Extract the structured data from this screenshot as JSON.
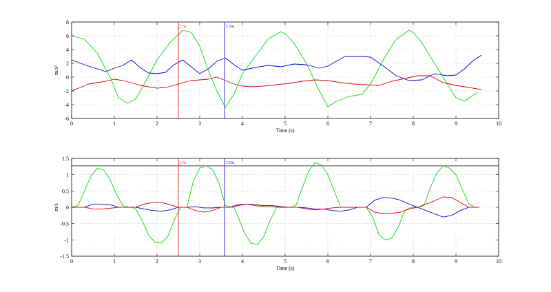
{
  "chart_data": [
    {
      "type": "line",
      "ylabel": "m/s²",
      "xlabel": "Time (s)",
      "xlim": [
        0,
        10
      ],
      "ylim": [
        -6,
        8
      ],
      "xticks": [
        0,
        1,
        2,
        3,
        4,
        5,
        6,
        7,
        8,
        9,
        10
      ],
      "yticks": [
        -6,
        -4,
        -2,
        0,
        2,
        4,
        6,
        8
      ],
      "grid": true,
      "colors": {
        "green": "#00dd00",
        "blue": "#0000dd",
        "red": "#dd0000",
        "marker_red": "#ee3333",
        "marker_blue": "#3333ee"
      },
      "markers": [
        {
          "x": 2.5,
          "label": "2.5s",
          "color": "red"
        },
        {
          "x": 3.58,
          "label": "3.58s",
          "color": "blue"
        }
      ],
      "series": [
        {
          "color": "green",
          "x": [
            0,
            0.3,
            0.6,
            0.9,
            1.1,
            1.3,
            1.5,
            1.7,
            2.0,
            2.3,
            2.6,
            2.8,
            3.0,
            3.2,
            3.4,
            3.6,
            3.8,
            4.0,
            4.3,
            4.6,
            4.9,
            5.0,
            5.2,
            5.5,
            5.8,
            6.0,
            6.2,
            6.5,
            6.8,
            7.0,
            7.3,
            7.6,
            7.9,
            8.0,
            8.2,
            8.5,
            8.8,
            9.0,
            9.2,
            9.5
          ],
          "y": [
            6,
            5.5,
            3.5,
            0,
            -3,
            -3.8,
            -3.2,
            -1,
            2.5,
            5,
            6.8,
            6.5,
            4.5,
            1,
            -2,
            -4.4,
            -2.5,
            0.5,
            3,
            5.5,
            6.6,
            6.3,
            5,
            2,
            -2,
            -4.3,
            -3.5,
            -2.8,
            -2.5,
            -1,
            2.5,
            5.5,
            6.8,
            6.5,
            5,
            2,
            -1,
            -3,
            -3.5,
            -2.2
          ]
        },
        {
          "color": "blue",
          "x": [
            0,
            0.3,
            0.6,
            0.8,
            1.0,
            1.2,
            1.4,
            1.6,
            1.8,
            2.0,
            2.2,
            2.4,
            2.6,
            2.8,
            3.0,
            3.2,
            3.4,
            3.6,
            3.8,
            4.0,
            4.3,
            4.6,
            4.9,
            5.2,
            5.5,
            5.8,
            6.0,
            6.2,
            6.4,
            6.6,
            6.8,
            7.0,
            7.3,
            7.6,
            7.9,
            8.2,
            8.5,
            8.8,
            9.0,
            9.2,
            9.4,
            9.6
          ],
          "y": [
            2.5,
            1.8,
            1.2,
            0.8,
            1.3,
            1.7,
            2.5,
            1.4,
            0.6,
            0.5,
            0.7,
            1.8,
            2.5,
            1.5,
            0.5,
            1.2,
            2.3,
            2.8,
            1.8,
            1.0,
            1.4,
            1.7,
            1.5,
            1.9,
            1.8,
            1.3,
            1.6,
            2.3,
            3.0,
            3.0,
            3.0,
            2.9,
            1.6,
            0.2,
            -0.5,
            -0.4,
            0.5,
            0.2,
            0.3,
            1.2,
            2.4,
            3.2
          ]
        },
        {
          "color": "red",
          "x": [
            0,
            0.2,
            0.4,
            0.6,
            0.8,
            1.0,
            1.2,
            1.4,
            1.6,
            1.8,
            2.0,
            2.2,
            2.4,
            2.6,
            2.8,
            3.0,
            3.2,
            3.4,
            3.6,
            3.8,
            4.0,
            4.2,
            4.5,
            4.8,
            5.1,
            5.4,
            5.7,
            6.0,
            6.3,
            6.6,
            6.9,
            7.2,
            7.5,
            7.8,
            8.1,
            8.4,
            8.7,
            9.0,
            9.3,
            9.6
          ],
          "y": [
            -2.0,
            -1.5,
            -1.0,
            -0.8,
            -0.6,
            -0.3,
            -0.5,
            -0.8,
            -1.2,
            -1.4,
            -1.6,
            -1.5,
            -1.2,
            -0.8,
            -0.5,
            -0.4,
            -0.3,
            0,
            -0.5,
            -1.0,
            -1.3,
            -1.4,
            -1.3,
            -1.1,
            -0.9,
            -0.6,
            -0.4,
            -0.5,
            -0.8,
            -1.0,
            -1.1,
            -1.2,
            -0.6,
            -0.2,
            0.2,
            0.2,
            -0.8,
            -1.2,
            -1.5,
            -1.8
          ]
        }
      ]
    },
    {
      "type": "line",
      "ylabel": "m/s",
      "xlabel": "Time (s)",
      "xlim": [
        0,
        10
      ],
      "ylim": [
        -1.5,
        1.5
      ],
      "xticks": [
        0,
        1,
        2,
        3,
        4,
        5,
        6,
        7,
        8,
        9,
        10
      ],
      "yticks": [
        -1.5,
        -1,
        -0.5,
        0,
        0.5,
        1,
        1.5
      ],
      "grid": true,
      "reference_line": 1.27,
      "markers": [
        {
          "x": 2.5,
          "label": "2.5s",
          "color": "red"
        },
        {
          "x": 3.58,
          "label": "3.58s",
          "color": "blue"
        }
      ],
      "series": [
        {
          "color": "green",
          "x": [
            0,
            0.15,
            0.3,
            0.45,
            0.6,
            0.75,
            0.9,
            1.05,
            1.2,
            1.35,
            1.4,
            1.5,
            1.65,
            1.8,
            1.95,
            2.1,
            2.25,
            2.4,
            2.55,
            2.7,
            2.85,
            3.0,
            3.15,
            3.3,
            3.45,
            3.6,
            3.75,
            3.8,
            3.9,
            4.05,
            4.2,
            4.35,
            4.5,
            4.65,
            4.8,
            4.95,
            5.1,
            5.25,
            5.4,
            5.55,
            5.7,
            5.85,
            6.0,
            6.15,
            6.3,
            6.45,
            6.6,
            6.75,
            6.9,
            7.05,
            7.2,
            7.35,
            7.5,
            7.65,
            7.8,
            7.95,
            8.1,
            8.25,
            8.4,
            8.55,
            8.7,
            8.85,
            9.0,
            9.15,
            9.3,
            9.45,
            9.55
          ],
          "y": [
            0,
            0.05,
            0.5,
            0.95,
            1.2,
            1.15,
            0.85,
            0.4,
            0.05,
            0,
            0,
            -0.05,
            -0.4,
            -0.85,
            -1.07,
            -1.1,
            -0.9,
            -0.4,
            0,
            0,
            0.8,
            1.2,
            1.28,
            1.15,
            0.75,
            0.05,
            0,
            0,
            -0.3,
            -0.8,
            -1.1,
            -1.15,
            -0.9,
            -0.4,
            0,
            0,
            0,
            0.05,
            0.6,
            1.1,
            1.37,
            1.3,
            1.0,
            0.5,
            0,
            0,
            0,
            0,
            0,
            -0.3,
            -0.85,
            -1.0,
            -0.95,
            -0.6,
            -0.1,
            0,
            0,
            0.05,
            0.6,
            1.05,
            1.27,
            1.2,
            1.0,
            0.55,
            0.1,
            0,
            0
          ]
        },
        {
          "color": "blue",
          "x": [
            0,
            0.3,
            0.5,
            0.7,
            0.9,
            1.1,
            1.3,
            1.5,
            1.7,
            1.9,
            2.1,
            2.3,
            2.5,
            2.7,
            2.9,
            3.1,
            3.3,
            3.5,
            3.7,
            3.9,
            4.1,
            4.3,
            4.5,
            4.7,
            4.9,
            5.1,
            5.3,
            5.5,
            5.7,
            5.9,
            6.1,
            6.3,
            6.5,
            6.7,
            6.9,
            7.1,
            7.3,
            7.5,
            7.7,
            7.9,
            8.1,
            8.3,
            8.5,
            8.7,
            8.9,
            9.1,
            9.3,
            9.55
          ],
          "y": [
            0,
            0,
            0.1,
            0.1,
            0.08,
            0,
            0,
            0,
            -0.05,
            -0.1,
            -0.12,
            -0.08,
            0,
            0,
            0.02,
            -0.02,
            -0.02,
            0,
            0,
            0.05,
            0.1,
            0.08,
            0.05,
            0.05,
            0.02,
            0,
            0,
            -0.02,
            -0.05,
            -0.05,
            -0.1,
            -0.12,
            -0.08,
            0,
            0,
            0.22,
            0.3,
            0.28,
            0.22,
            0.1,
            0,
            -0.1,
            -0.2,
            -0.3,
            -0.25,
            -0.1,
            0,
            0
          ]
        },
        {
          "color": "red",
          "x": [
            0,
            0.3,
            0.5,
            0.7,
            0.9,
            1.1,
            1.3,
            1.5,
            1.7,
            1.9,
            2.1,
            2.3,
            2.5,
            2.7,
            2.9,
            3.1,
            3.3,
            3.5,
            3.7,
            3.9,
            4.1,
            4.3,
            4.5,
            4.7,
            4.9,
            5.1,
            5.3,
            5.5,
            5.7,
            5.9,
            6.1,
            6.3,
            6.5,
            6.7,
            6.9,
            7.1,
            7.3,
            7.5,
            7.7,
            7.9,
            8.1,
            8.3,
            8.5,
            8.7,
            8.9,
            9.1,
            9.3,
            9.55
          ],
          "y": [
            0,
            0,
            -0.05,
            -0.05,
            -0.03,
            0,
            0,
            0,
            0.1,
            0.15,
            0.15,
            0.08,
            0,
            0,
            -0.1,
            -0.15,
            -0.1,
            0,
            0,
            0.08,
            0.1,
            0.05,
            0.02,
            0.02,
            0,
            0,
            0,
            -0.05,
            -0.08,
            -0.05,
            -0.02,
            0,
            0,
            0,
            0,
            -0.15,
            -0.2,
            -0.18,
            -0.15,
            -0.05,
            0,
            0.1,
            0.2,
            0.32,
            0.3,
            0.15,
            0,
            0
          ]
        }
      ]
    }
  ]
}
